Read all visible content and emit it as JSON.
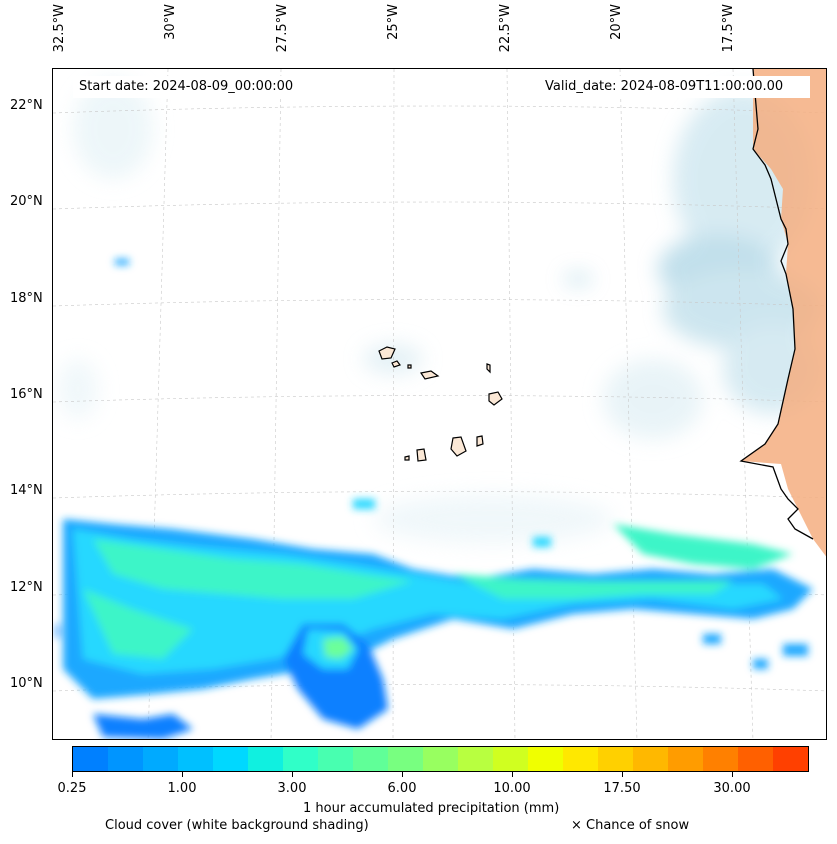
{
  "map": {
    "lon_labels": [
      "32.5°W",
      "30°W",
      "27.5°W",
      "25°W",
      "22.5°W",
      "20°W",
      "17.5°W"
    ],
    "lat_labels": [
      "22°N",
      "20°N",
      "18°N",
      "16°N",
      "14°N",
      "12°N",
      "10°N"
    ],
    "start_date": "Start date: 2024-08-09_00:00:00",
    "valid_date": "Valid_date: 2024-08-09T11:00:00.00",
    "extent": {
      "lon_min": -32.6,
      "lon_max": -15.5,
      "lat_min": 8.9,
      "lat_max": 22.8
    },
    "land_color": "#f4a874",
    "cloud_color": "#a9d3e3"
  },
  "colorbar": {
    "colors": [
      "#0080ff",
      "#0095ff",
      "#00aaff",
      "#00c0ff",
      "#00d8ff",
      "#10f0e0",
      "#30ffc8",
      "#48ffb0",
      "#60ff98",
      "#78ff80",
      "#98ff60",
      "#b8ff40",
      "#d0ff20",
      "#f0ff00",
      "#ffe800",
      "#ffd000",
      "#ffb800",
      "#ff9c00",
      "#ff8000",
      "#ff6000",
      "#ff4000"
    ],
    "tick_labels": [
      "0.25",
      "1.00",
      "3.00",
      "6.00",
      "10.00",
      "17.50",
      "30.00"
    ],
    "title": "1 hour accumulated precipitation (mm)"
  },
  "legend": {
    "cloud_cover": "Cloud cover (white background shading)",
    "snow": "× Chance of snow"
  }
}
